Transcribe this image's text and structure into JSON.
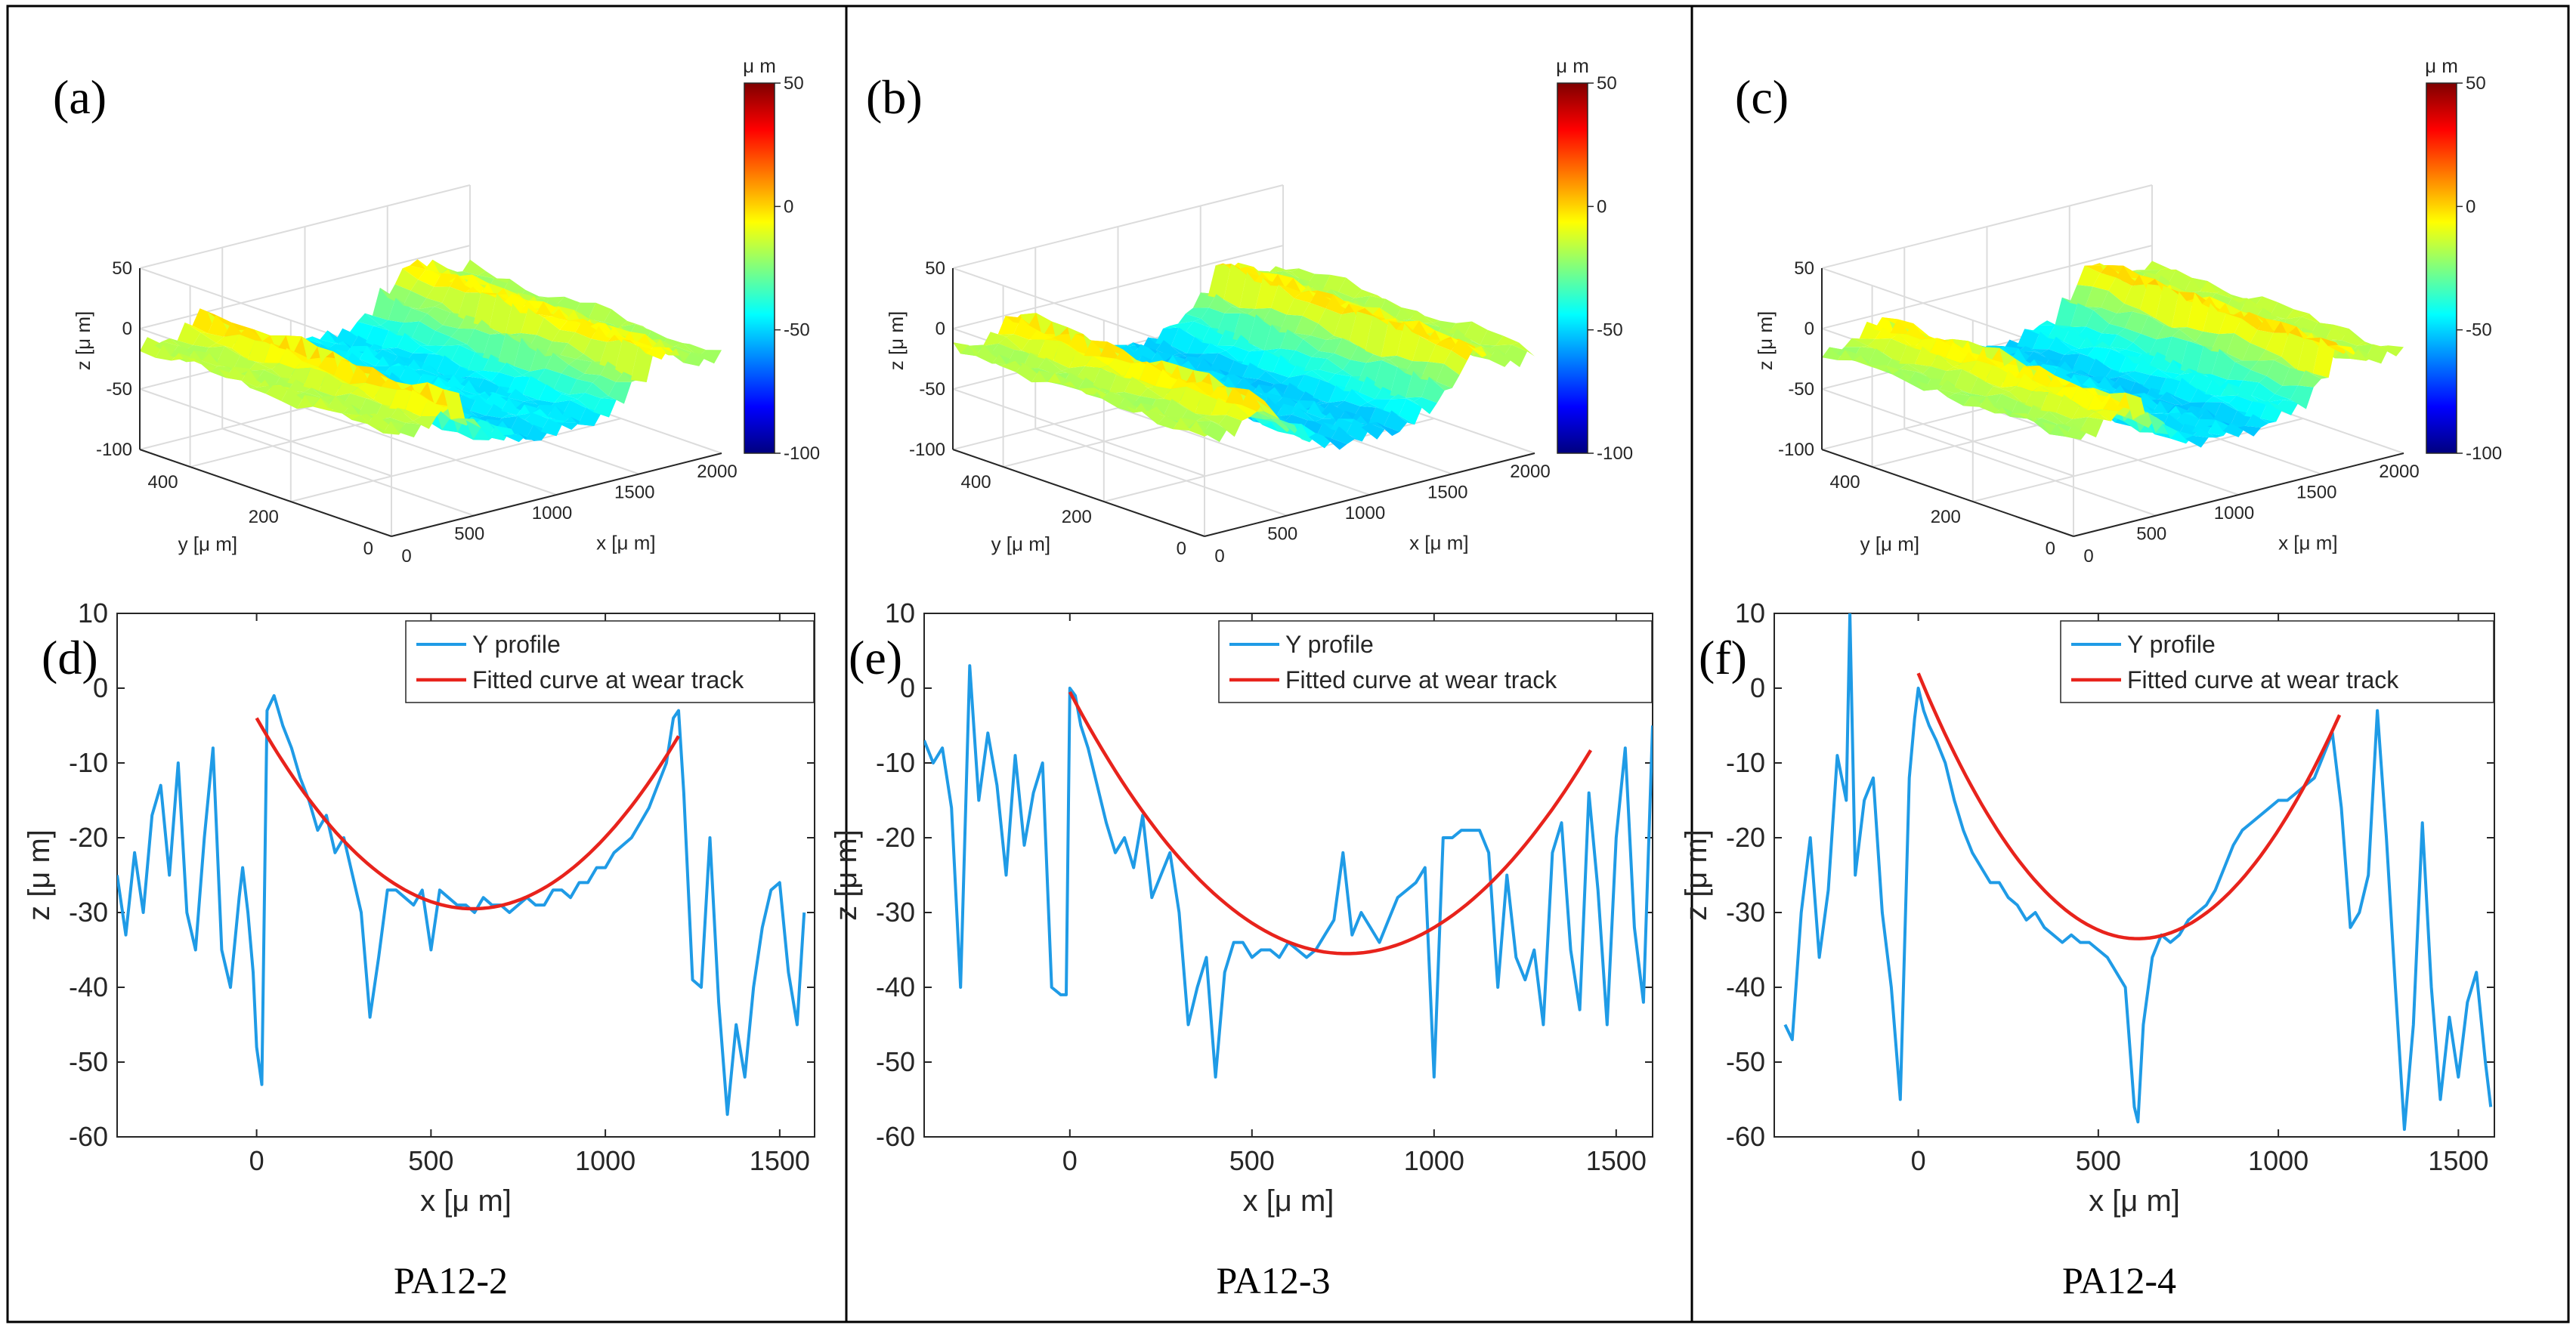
{
  "figure": {
    "colors": {
      "profile": "#1f9be6",
      "fit": "#e8231c",
      "axis": "#262626",
      "grid": "#dcdcdc",
      "border": "#000000"
    },
    "colormap": [
      "#00007f",
      "#0000ff",
      "#007fff",
      "#00ffff",
      "#7fff7f",
      "#ffff00",
      "#ff7f00",
      "#ff0000",
      "#7f0000"
    ]
  },
  "chart_data": [
    {
      "panel": "a",
      "label": "(a)",
      "type": "surface3d",
      "sample": "PA12-2",
      "xlabel": "x [μ m]",
      "ylabel": "y [μ m]",
      "zlabel": "z [μ m]",
      "xticks": [
        "500",
        "1000",
        "1500",
        "2000"
      ],
      "xtick_zero": "0",
      "yticks": [
        "200",
        "400"
      ],
      "ytick_zero": "0",
      "zticks": [
        "50",
        "0",
        "-50",
        "-100"
      ],
      "colorbar": {
        "unit": "μ m",
        "ticks": [
          "50",
          "0",
          "-50",
          "-100"
        ],
        "range": [
          -100,
          50
        ]
      },
      "track_depth": 30
    },
    {
      "panel": "b",
      "label": "(b)",
      "type": "surface3d",
      "sample": "PA12-3",
      "xlabel": "x [μ m]",
      "ylabel": "y [μ m]",
      "zlabel": "z [μ m]",
      "xticks": [
        "500",
        "1000",
        "1500",
        "2000"
      ],
      "xtick_zero": "0",
      "yticks": [
        "200",
        "400"
      ],
      "ytick_zero": "0",
      "zticks": [
        "50",
        "0",
        "-50",
        "-100"
      ],
      "colorbar": {
        "unit": "μ m",
        "ticks": [
          "50",
          "0",
          "-50",
          "-100"
        ],
        "range": [
          -100,
          50
        ]
      },
      "track_depth": 35
    },
    {
      "panel": "c",
      "label": "(c)",
      "type": "surface3d",
      "sample": "PA12-4",
      "xlabel": "x [μ m]",
      "ylabel": "y [μ m]",
      "zlabel": "z [μ m]",
      "xticks": [
        "500",
        "1000",
        "1500",
        "2000"
      ],
      "xtick_zero": "0",
      "yticks": [
        "200",
        "400"
      ],
      "ytick_zero": "0",
      "zticks": [
        "50",
        "0",
        "-50",
        "-100"
      ],
      "colorbar": {
        "unit": "μ m",
        "ticks": [
          "50",
          "0",
          "-50",
          "-100"
        ],
        "range": [
          -100,
          50
        ]
      },
      "track_depth": 33
    },
    {
      "panel": "d",
      "label": "(d)",
      "type": "line",
      "sample": "PA12-2",
      "xlabel": "x [μ m]",
      "ylabel": "z [μ m]",
      "xlim": [
        -400,
        1600
      ],
      "ylim": [
        -60,
        10
      ],
      "xticks": [
        0,
        500,
        1000,
        1500
      ],
      "yticks": [
        10,
        0,
        -10,
        -20,
        -30,
        -40,
        -50,
        -60
      ],
      "legend": [
        "Y profile",
        "Fitted curve at wear track"
      ],
      "series": [
        {
          "name": "Y profile",
          "x": [
            -400,
            -375,
            -350,
            -325,
            -300,
            -275,
            -250,
            -225,
            -200,
            -175,
            -150,
            -125,
            -100,
            -75,
            -50,
            -40,
            -25,
            -10,
            0,
            15,
            30,
            50,
            75,
            100,
            125,
            150,
            175,
            200,
            225,
            250,
            275,
            300,
            325,
            350,
            375,
            400,
            425,
            450,
            475,
            500,
            525,
            550,
            575,
            600,
            625,
            650,
            675,
            700,
            725,
            750,
            775,
            800,
            825,
            850,
            875,
            900,
            925,
            950,
            975,
            1000,
            1025,
            1050,
            1075,
            1100,
            1125,
            1150,
            1175,
            1195,
            1210,
            1225,
            1250,
            1275,
            1300,
            1325,
            1350,
            1375,
            1400,
            1425,
            1450,
            1475,
            1500,
            1525,
            1550,
            1570
          ],
          "y": [
            -25,
            -33,
            -22,
            -30,
            -17,
            -13,
            -25,
            -10,
            -30,
            -35,
            -20,
            -8,
            -35,
            -40,
            -28,
            -24,
            -30,
            -38,
            -48,
            -53,
            -3,
            -1,
            -5,
            -8,
            -12,
            -15,
            -19,
            -17,
            -22,
            -20,
            -25,
            -30,
            -44,
            -36,
            -27,
            -27,
            -28,
            -29,
            -27,
            -35,
            -27,
            -28,
            -29,
            -29,
            -30,
            -28,
            -29,
            -29,
            -30,
            -29,
            -28,
            -29,
            -29,
            -27,
            -27,
            -28,
            -26,
            -26,
            -24,
            -24,
            -22,
            -21,
            -20,
            -18,
            -16,
            -13,
            -10,
            -4,
            -3,
            -14,
            -39,
            -40,
            -20,
            -42,
            -57,
            -45,
            -52,
            -40,
            -32,
            -27,
            -26,
            -38,
            -45,
            -30
          ],
          "color_key": "profile"
        },
        {
          "name": "Fitted curve at wear track",
          "fit": {
            "vertex_x": 620,
            "vertex_y": -29.5,
            "x0": 0,
            "x1": 1210,
            "y0": -4
          },
          "color_key": "fit"
        }
      ]
    },
    {
      "panel": "e",
      "label": "(e)",
      "type": "line",
      "sample": "PA12-3",
      "xlabel": "x [μ m]",
      "ylabel": "z [μ m]",
      "xlim": [
        -400,
        1600
      ],
      "ylim": [
        -60,
        10
      ],
      "xticks": [
        0,
        500,
        1000,
        1500
      ],
      "yticks": [
        10,
        0,
        -10,
        -20,
        -30,
        -40,
        -50,
        -60
      ],
      "legend": [
        "Y profile",
        "Fitted curve at wear track"
      ],
      "series": [
        {
          "name": "Y profile",
          "x": [
            -400,
            -375,
            -350,
            -325,
            -300,
            -275,
            -250,
            -225,
            -200,
            -175,
            -150,
            -125,
            -100,
            -75,
            -50,
            -25,
            -10,
            0,
            15,
            30,
            50,
            75,
            100,
            125,
            150,
            175,
            200,
            225,
            250,
            275,
            300,
            325,
            350,
            375,
            400,
            425,
            450,
            475,
            500,
            525,
            550,
            575,
            600,
            625,
            650,
            675,
            700,
            725,
            750,
            775,
            800,
            825,
            850,
            875,
            900,
            925,
            950,
            975,
            1000,
            1025,
            1050,
            1075,
            1100,
            1125,
            1150,
            1175,
            1200,
            1225,
            1250,
            1275,
            1300,
            1325,
            1350,
            1375,
            1400,
            1425,
            1450,
            1475,
            1500,
            1525,
            1550,
            1575,
            1600
          ],
          "y": [
            -7,
            -10,
            -8,
            -16,
            -40,
            3,
            -15,
            -6,
            -13,
            -25,
            -9,
            -21,
            -14,
            -10,
            -40,
            -41,
            -41,
            0,
            -1,
            -5,
            -8,
            -13,
            -18,
            -22,
            -20,
            -24,
            -17,
            -28,
            -25,
            -22,
            -30,
            -45,
            -40,
            -36,
            -52,
            -38,
            -34,
            -34,
            -36,
            -35,
            -35,
            -36,
            -34,
            -35,
            -36,
            -35,
            -33,
            -31,
            -22,
            -33,
            -30,
            -32,
            -34,
            -31,
            -28,
            -27,
            -26,
            -24,
            -52,
            -20,
            -20,
            -19,
            -19,
            -19,
            -22,
            -40,
            -25,
            -36,
            -39,
            -35,
            -45,
            -22,
            -18,
            -35,
            -43,
            -14,
            -27,
            -45,
            -20,
            -8,
            -32,
            -42,
            -5
          ],
          "color_key": "profile"
        },
        {
          "name": "Fitted curve at wear track",
          "fit": {
            "vertex_x": 760,
            "vertex_y": -35.5,
            "x0": 0,
            "x1": 1430,
            "y0": -0.5
          },
          "color_key": "fit"
        }
      ]
    },
    {
      "panel": "f",
      "label": "(f)",
      "type": "line",
      "sample": "PA12-4",
      "xlabel": "x [μ m]",
      "ylabel": "z [μ m]",
      "xlim": [
        -400,
        1600
      ],
      "ylim": [
        -60,
        10
      ],
      "xticks": [
        0,
        500,
        1000,
        1500
      ],
      "yticks": [
        10,
        0,
        -10,
        -20,
        -30,
        -40,
        -50,
        -60
      ],
      "legend": [
        "Y profile",
        "Fitted curve at wear track"
      ],
      "series": [
        {
          "name": "Y profile",
          "x": [
            -370,
            -350,
            -325,
            -300,
            -275,
            -250,
            -225,
            -200,
            -190,
            -175,
            -150,
            -125,
            -100,
            -75,
            -50,
            -25,
            -10,
            0,
            15,
            30,
            50,
            75,
            100,
            125,
            150,
            175,
            200,
            225,
            250,
            275,
            300,
            325,
            350,
            375,
            400,
            425,
            450,
            475,
            500,
            525,
            550,
            575,
            600,
            610,
            625,
            650,
            675,
            700,
            725,
            750,
            775,
            800,
            825,
            850,
            875,
            900,
            925,
            950,
            975,
            1000,
            1025,
            1050,
            1075,
            1100,
            1125,
            1150,
            1175,
            1200,
            1225,
            1250,
            1275,
            1300,
            1325,
            1350,
            1375,
            1400,
            1425,
            1450,
            1475,
            1500,
            1525,
            1550,
            1575,
            1590
          ],
          "y": [
            -45,
            -47,
            -30,
            -20,
            -36,
            -27,
            -9,
            -15,
            10,
            -25,
            -15,
            -12,
            -30,
            -40,
            -55,
            -12,
            -4,
            0,
            -3,
            -5,
            -7,
            -10,
            -15,
            -19,
            -22,
            -24,
            -26,
            -26,
            -28,
            -29,
            -31,
            -30,
            -32,
            -33,
            -34,
            -33,
            -34,
            -34,
            -35,
            -36,
            -38,
            -40,
            -56,
            -58,
            -45,
            -36,
            -33,
            -34,
            -33,
            -31,
            -30,
            -29,
            -27,
            -24,
            -21,
            -19,
            -18,
            -17,
            -16,
            -15,
            -15,
            -14,
            -13,
            -12,
            -9,
            -6,
            -16,
            -32,
            -30,
            -25,
            -3,
            -20,
            -40,
            -59,
            -45,
            -18,
            -40,
            -55,
            -44,
            -52,
            -42,
            -38,
            -50,
            -56
          ],
          "color_key": "profile"
        },
        {
          "name": "Fitted curve at wear track",
          "fit": {
            "vertex_x": 610,
            "vertex_y": -33.5,
            "x0": 0,
            "x1": 1170,
            "y0": 2
          },
          "color_key": "fit"
        }
      ]
    }
  ]
}
